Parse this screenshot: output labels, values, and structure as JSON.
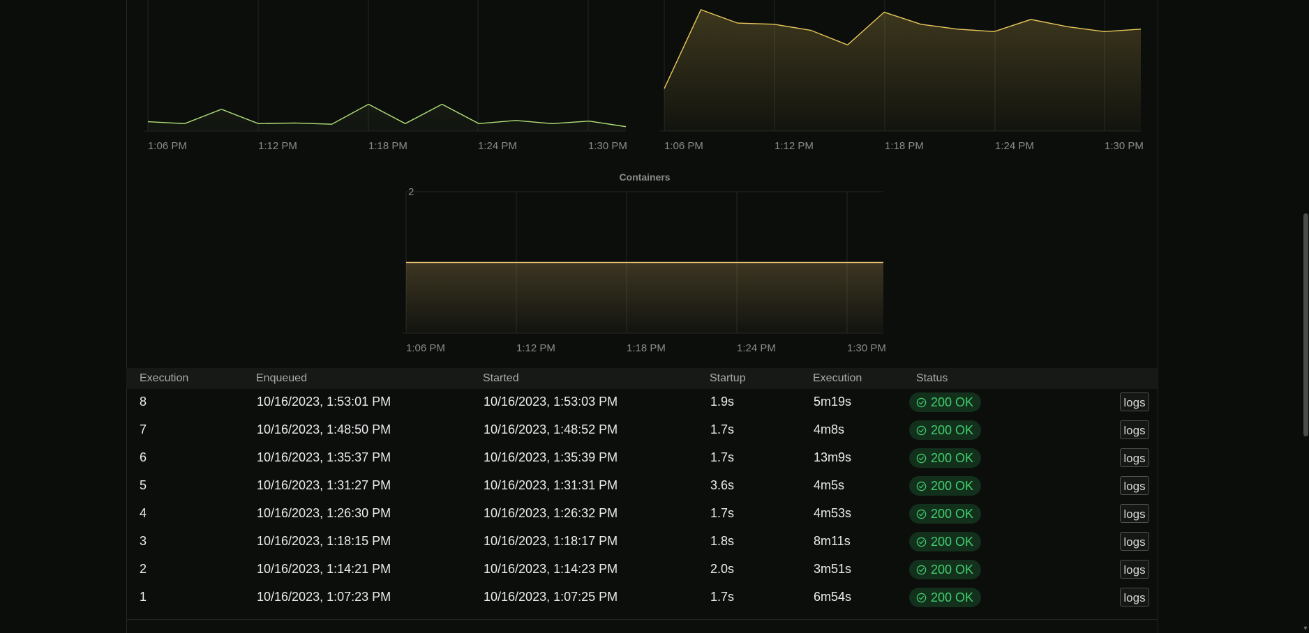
{
  "charts": [
    {
      "id": "left",
      "title": "",
      "x_ticks": [
        "1:06 PM",
        "1:12 PM",
        "1:18 PM",
        "1:24 PM",
        "1:30 PM"
      ],
      "color": "#b3e079"
    },
    {
      "id": "right",
      "title": "",
      "x_ticks": [
        "1:06 PM",
        "1:12 PM",
        "1:18 PM",
        "1:24 PM",
        "1:30 PM"
      ],
      "color": "#e9c85a"
    },
    {
      "id": "containers",
      "title": "Containers",
      "y_ticks": [
        "2"
      ],
      "x_ticks": [
        "1:06 PM",
        "1:12 PM",
        "1:18 PM",
        "1:24 PM",
        "1:30 PM"
      ],
      "color": "#e9c470"
    }
  ],
  "chart_data": [
    {
      "type": "line",
      "title": "",
      "x": [
        "1:06",
        "1:08",
        "1:10",
        "1:12",
        "1:14",
        "1:16",
        "1:18",
        "1:20",
        "1:22",
        "1:24",
        "1:26",
        "1:28",
        "1:30",
        "1:32"
      ],
      "series": [
        {
          "values": [
            0.15,
            0.12,
            0.35,
            0.12,
            0.13,
            0.11,
            0.43,
            0.12,
            0.43,
            0.12,
            0.17,
            0.12,
            0.16,
            0.07
          ]
        }
      ],
      "ylim": [
        0,
        2.1
      ]
    },
    {
      "type": "area",
      "title": "",
      "x": [
        "1:06",
        "1:08",
        "1:10",
        "1:12",
        "1:14",
        "1:16",
        "1:18",
        "1:20",
        "1:22",
        "1:24",
        "1:26",
        "1:28",
        "1:30",
        "1:32"
      ],
      "series": [
        {
          "values": [
            0.35,
            1.0,
            0.89,
            0.88,
            0.83,
            0.71,
            0.98,
            0.88,
            0.84,
            0.82,
            0.92,
            0.86,
            0.82,
            0.84
          ]
        }
      ],
      "ylim": [
        0,
        1.08
      ]
    },
    {
      "type": "area",
      "title": "Containers",
      "x": [
        "1:06",
        "1:32"
      ],
      "series": [
        {
          "values": [
            1,
            1
          ]
        }
      ],
      "ylim": [
        0,
        2
      ]
    }
  ],
  "table": {
    "headers": [
      "Execution",
      "Enqueued",
      "Started",
      "Startup",
      "Execution",
      "Status"
    ],
    "rows": [
      {
        "id": "8",
        "enqueued": "10/16/2023, 1:53:01 PM",
        "started": "10/16/2023, 1:53:03 PM",
        "startup": "1.9s",
        "execution": "5m19s",
        "status": "200 OK",
        "action": "logs"
      },
      {
        "id": "7",
        "enqueued": "10/16/2023, 1:48:50 PM",
        "started": "10/16/2023, 1:48:52 PM",
        "startup": "1.7s",
        "execution": "4m8s",
        "status": "200 OK",
        "action": "logs"
      },
      {
        "id": "6",
        "enqueued": "10/16/2023, 1:35:37 PM",
        "started": "10/16/2023, 1:35:39 PM",
        "startup": "1.7s",
        "execution": "13m9s",
        "status": "200 OK",
        "action": "logs"
      },
      {
        "id": "5",
        "enqueued": "10/16/2023, 1:31:27 PM",
        "started": "10/16/2023, 1:31:31 PM",
        "startup": "3.6s",
        "execution": "4m5s",
        "status": "200 OK",
        "action": "logs"
      },
      {
        "id": "4",
        "enqueued": "10/16/2023, 1:26:30 PM",
        "started": "10/16/2023, 1:26:32 PM",
        "startup": "1.7s",
        "execution": "4m53s",
        "status": "200 OK",
        "action": "logs"
      },
      {
        "id": "3",
        "enqueued": "10/16/2023, 1:18:15 PM",
        "started": "10/16/2023, 1:18:17 PM",
        "startup": "1.8s",
        "execution": "8m11s",
        "status": "200 OK",
        "action": "logs"
      },
      {
        "id": "2",
        "enqueued": "10/16/2023, 1:14:21 PM",
        "started": "10/16/2023, 1:14:23 PM",
        "startup": "2.0s",
        "execution": "3m51s",
        "status": "200 OK",
        "action": "logs"
      },
      {
        "id": "1",
        "enqueued": "10/16/2023, 1:07:23 PM",
        "started": "10/16/2023, 1:07:25 PM",
        "startup": "1.7s",
        "execution": "6m54s",
        "status": "200 OK",
        "action": "logs"
      }
    ]
  },
  "colors": {
    "status_ok": "#3fce6a",
    "status_ok_bg": "#13301d"
  },
  "icons": {
    "status": "check-circle-icon"
  }
}
